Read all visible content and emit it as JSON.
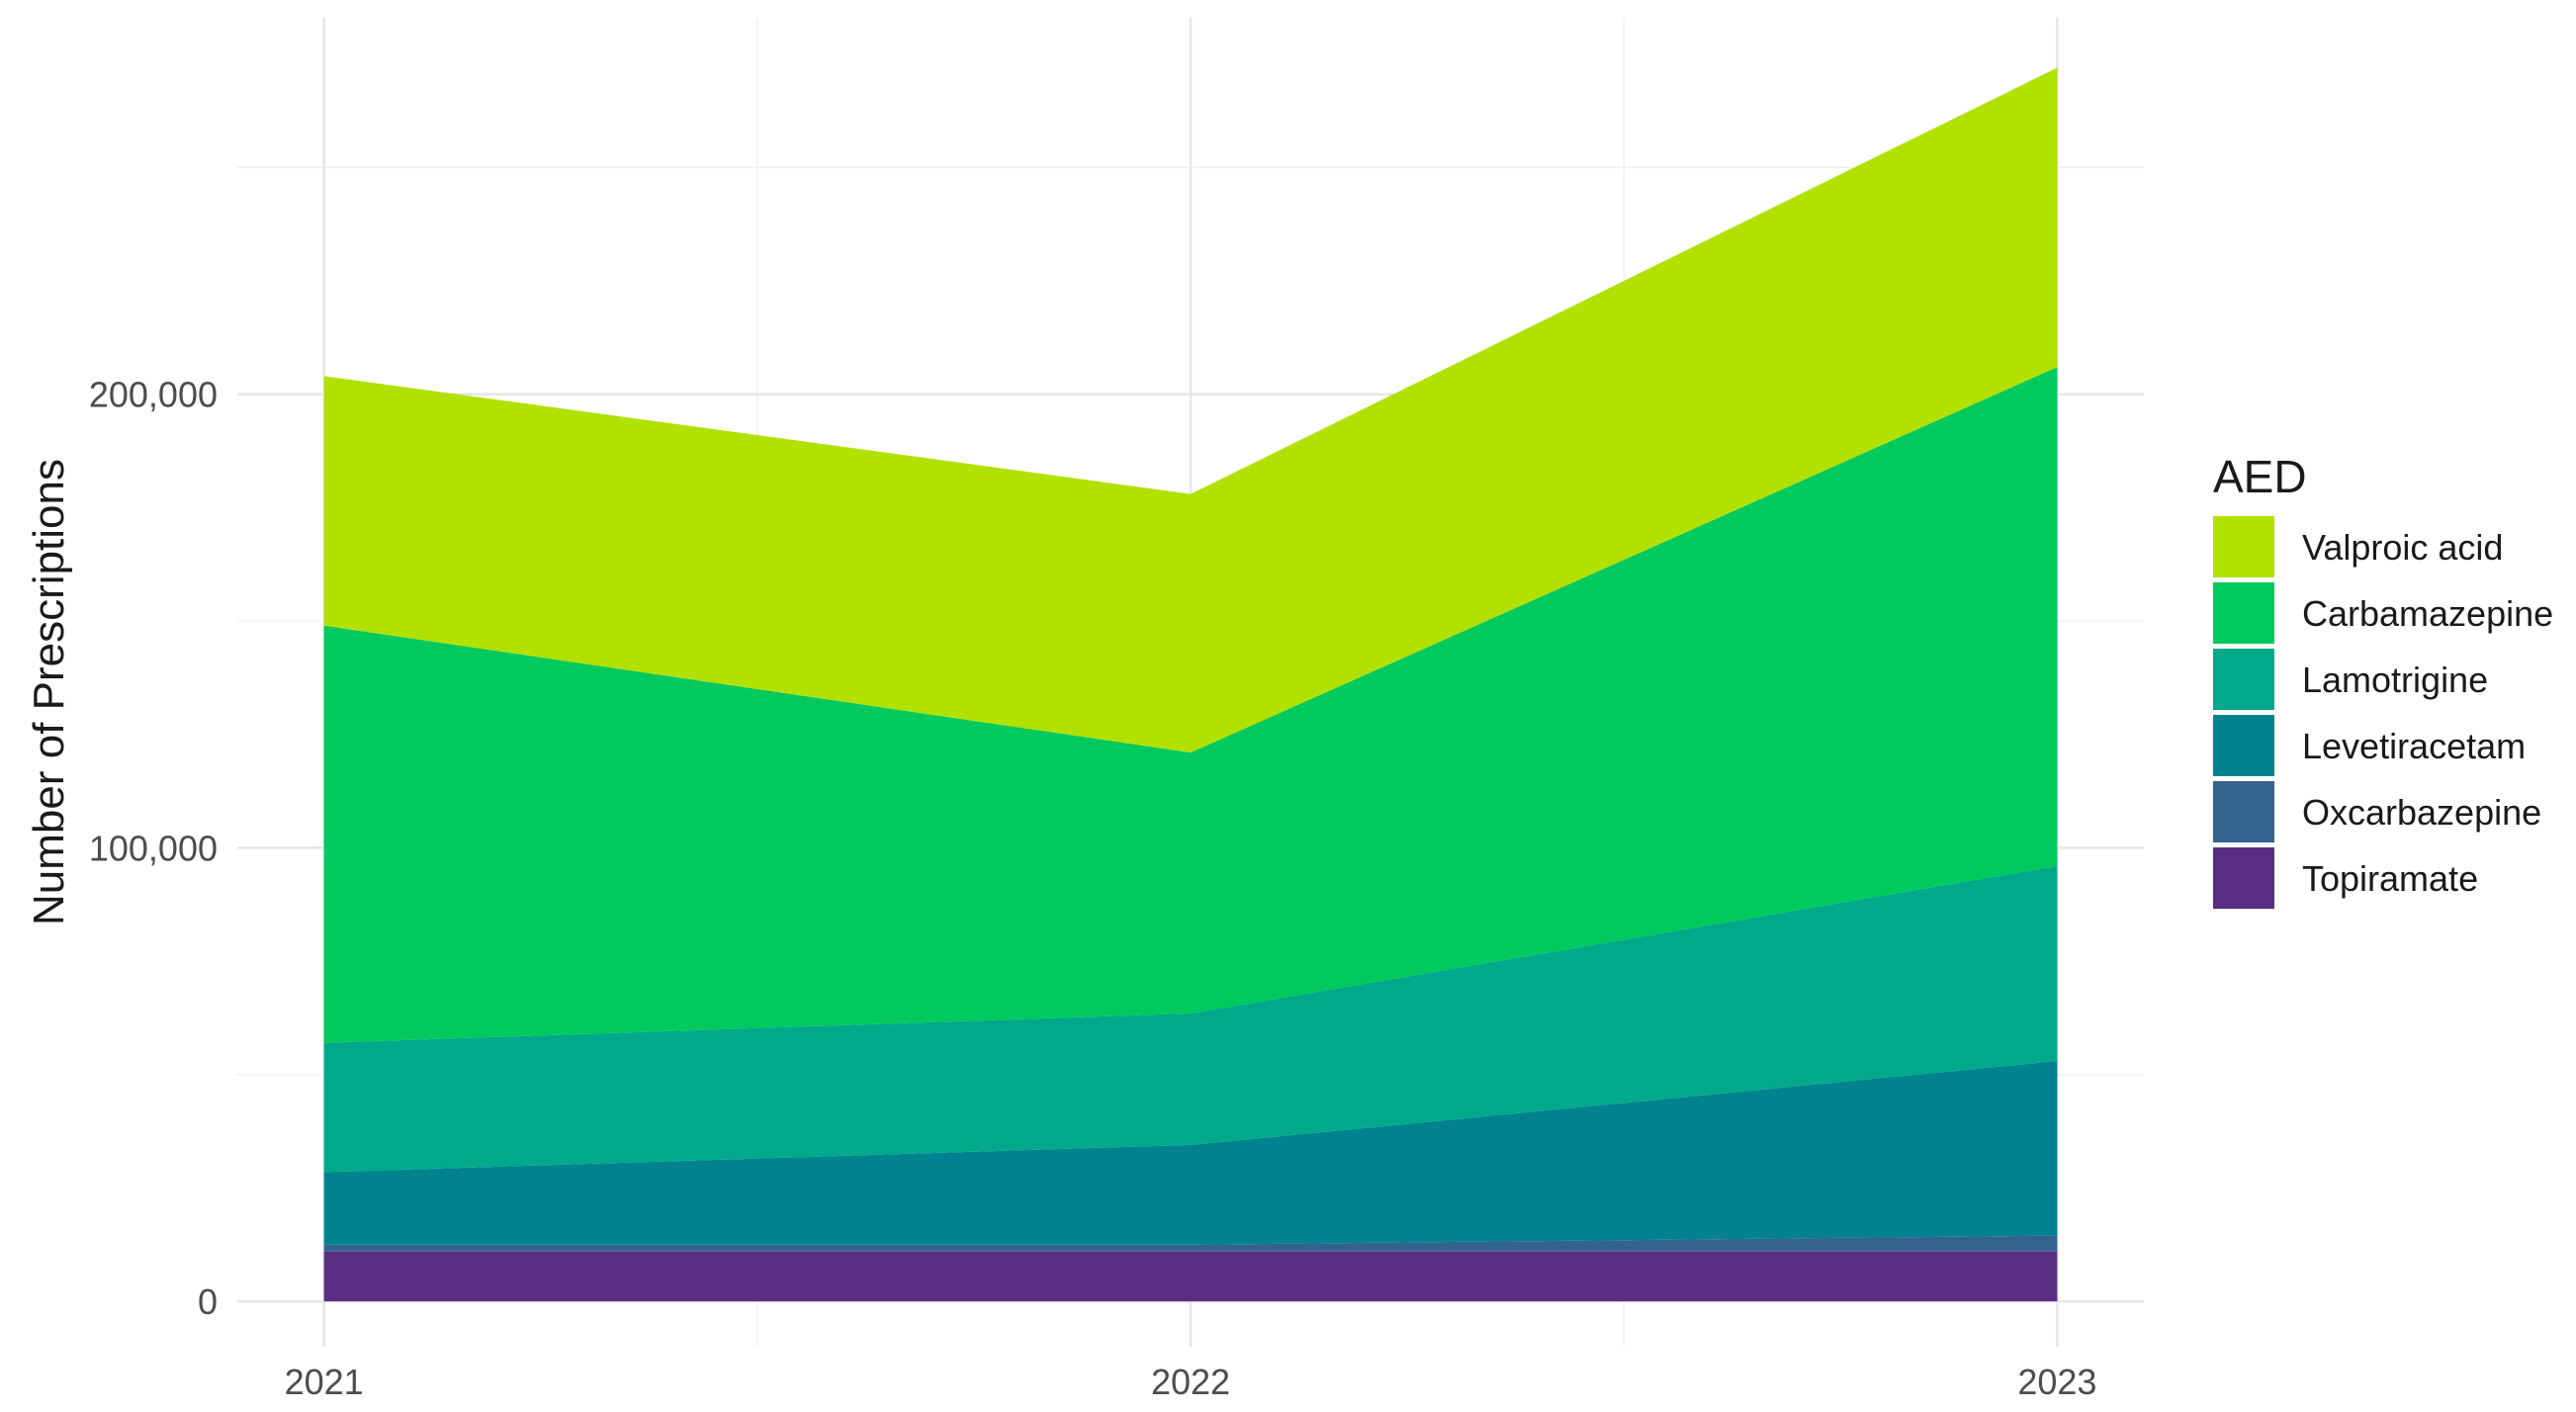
{
  "chart_data": {
    "type": "area",
    "stacked": true,
    "x": [
      2021,
      2022,
      2023
    ],
    "x_tick_labels": [
      "2021",
      "2022",
      "2023"
    ],
    "xlim": [
      2020.9,
      2023.1
    ],
    "ylim": [
      -10000,
      283000
    ],
    "y_ticks": [
      0,
      100000,
      200000
    ],
    "y_tick_labels": [
      "0",
      "100,000",
      "200,000"
    ],
    "y_minor_ticks": [
      50000,
      150000,
      250000
    ],
    "x_minor_ticks": [
      2021.5,
      2022.5
    ],
    "xlabel": "",
    "ylabel": "Number of Prescriptions",
    "grid": true,
    "legend": {
      "title": "AED",
      "placement": "right"
    },
    "series": [
      {
        "name": "Topiramate",
        "color": "#5A2D82",
        "values": [
          11000,
          11000,
          11000
        ]
      },
      {
        "name": "Oxcarbazepine",
        "color": "#33638D",
        "values": [
          1500,
          1500,
          3500
        ]
      },
      {
        "name": "Levetiracetam",
        "color": "#00838F",
        "values": [
          16000,
          22000,
          38500
        ]
      },
      {
        "name": "Lamotrigine",
        "color": "#00A98A",
        "values": [
          28500,
          29000,
          43000
        ]
      },
      {
        "name": "Carbamazepine",
        "color": "#00C95E",
        "values": [
          92000,
          57500,
          110000
        ]
      },
      {
        "name": "Valproic acid",
        "color": "#B1E100",
        "values": [
          55000,
          57000,
          66000
        ]
      }
    ],
    "legend_order": [
      "Valproic acid",
      "Carbamazepine",
      "Lamotrigine",
      "Levetiracetam",
      "Oxcarbazepine",
      "Topiramate"
    ]
  }
}
